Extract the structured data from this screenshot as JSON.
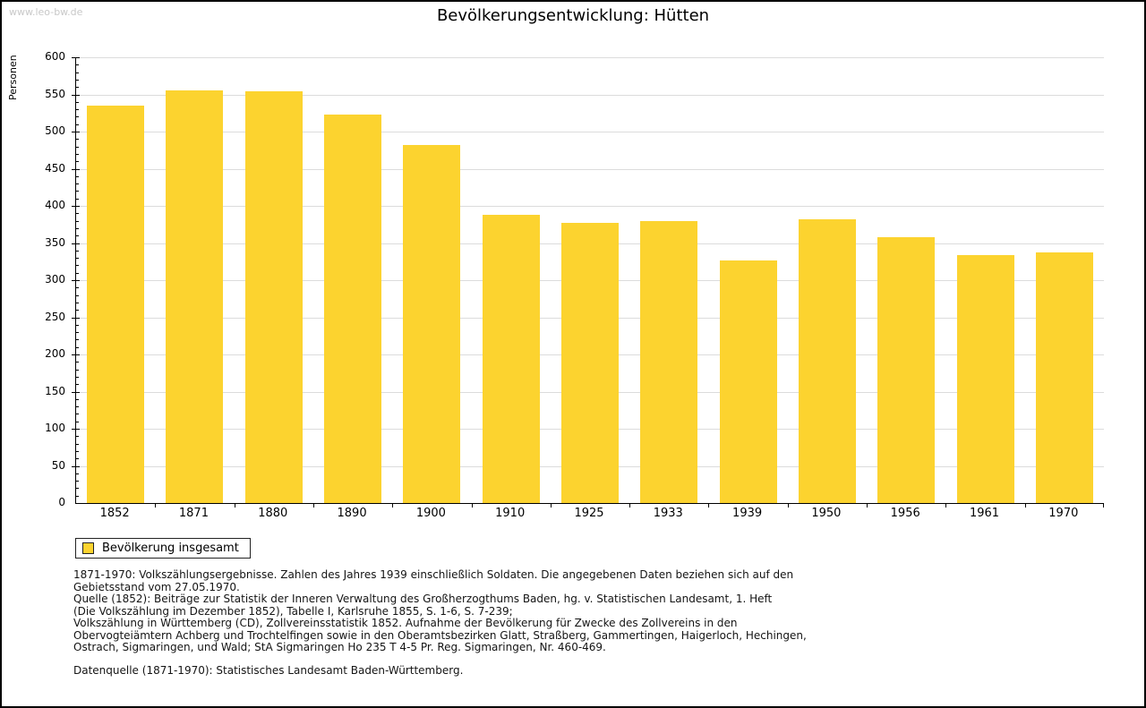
{
  "watermark": "www.leo-bw.de",
  "title": "Bevölkerungsentwicklung: Hütten",
  "chart_data": {
    "type": "bar",
    "title": "Bevölkerungsentwicklung: Hütten",
    "xlabel": "",
    "ylabel": "Personen",
    "categories": [
      "1852",
      "1871",
      "1880",
      "1890",
      "1900",
      "1910",
      "1925",
      "1933",
      "1939",
      "1950",
      "1956",
      "1961",
      "1970"
    ],
    "values": [
      535,
      556,
      554,
      523,
      482,
      388,
      377,
      380,
      327,
      382,
      358,
      334,
      337
    ],
    "ylim": [
      0,
      600
    ],
    "ytick_step": 50,
    "minor_tick_step": 10,
    "grid": "horizontal-major",
    "legend_position": "bottom-left",
    "legend_entries": [
      "Bevölkerung insgesamt"
    ],
    "bar_color": "#FCD32F"
  },
  "legend": {
    "label": "Bevölkerung insgesamt",
    "swatch_color": "#FCD32F"
  },
  "colors": {
    "bar": "#FCD32F",
    "gridline": "#DCDCDC",
    "watermark": "#C8C8C8",
    "axis": "#000000"
  },
  "footnotes": {
    "lines": [
      "1871-1970: Volkszählungsergebnisse. Zahlen des Jahres 1939 einschließlich Soldaten. Die angegebenen Daten beziehen sich auf den",
      "Gebietsstand vom 27.05.1970.",
      "Quelle (1852): Beiträge zur Statistik der Inneren Verwaltung des Großherzogthums Baden, hg. v. Statistischen Landesamt, 1. Heft",
      "(Die Volkszählung im Dezember 1852), Tabelle I, Karlsruhe 1855, S. 1-6, S. 7-239;",
      "Volkszählung in Württemberg (CD), Zollvereinsstatistik 1852. Aufnahme der Bevölkerung für Zwecke des Zollvereins in den",
      "Obervogteiämtern Achberg und Trochtelfingen sowie in den Oberamtsbezirken Glatt, Straßberg, Gammertingen, Haigerloch, Hechingen,",
      "Ostrach, Sigmaringen, und Wald; StA Sigmaringen Ho 235 T 4-5 Pr. Reg. Sigmaringen, Nr. 460-469."
    ],
    "datasource": "Datenquelle (1871-1970): Statistisches Landesamt Baden-Württemberg."
  }
}
